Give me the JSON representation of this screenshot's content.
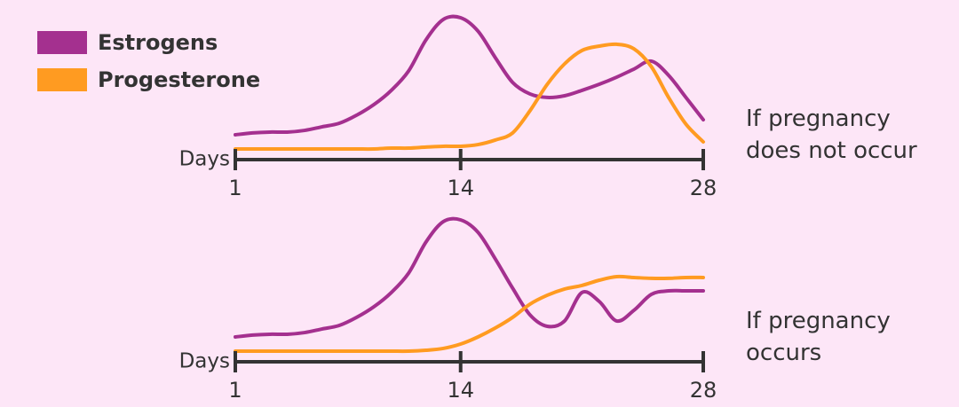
{
  "chart_data": [
    {
      "type": "line",
      "xlabel": "Days",
      "annotation": "If pregnancy does not occur",
      "legend": "top-left",
      "x": [
        1,
        2,
        3,
        4,
        5,
        6,
        7,
        8,
        9,
        10,
        11,
        12,
        13,
        14,
        15,
        16,
        17,
        18,
        19,
        20,
        21,
        22,
        23,
        24,
        25,
        26,
        27,
        28
      ],
      "xlim": [
        1,
        28
      ],
      "xticks": [
        1,
        14,
        28
      ],
      "ylim": [
        0,
        100
      ],
      "series": [
        {
          "name": "Estrogens",
          "color": "#a4308f",
          "values": [
            17.5,
            18.8,
            19.4,
            19.4,
            20.6,
            23.1,
            25.6,
            31.3,
            38.8,
            48.8,
            62.5,
            84.4,
            98.8,
            100,
            90.6,
            71.9,
            54.4,
            46.3,
            43.8,
            45,
            48.8,
            53.1,
            58.1,
            63.8,
            69.4,
            59.4,
            43.8,
            28.1
          ]
        },
        {
          "name": "Progesterone",
          "color": "#ff9b21",
          "values": [
            7.5,
            7.5,
            7.5,
            7.5,
            7.5,
            7.5,
            7.5,
            7.5,
            7.5,
            8.1,
            8.1,
            8.8,
            9.4,
            9.4,
            10.6,
            13.8,
            18.8,
            34.4,
            53.1,
            67.5,
            76.9,
            80,
            81.3,
            78.1,
            65.6,
            43.8,
            25,
            12.5
          ]
        }
      ]
    },
    {
      "type": "line",
      "xlabel": "Days",
      "annotation": "If pregnancy occurs",
      "x": [
        1,
        2,
        3,
        4,
        5,
        6,
        7,
        8,
        9,
        10,
        11,
        12,
        13,
        14,
        15,
        16,
        17,
        18,
        19,
        20,
        21,
        22,
        23,
        24,
        25,
        26,
        27,
        28
      ],
      "xlim": [
        1,
        28
      ],
      "xticks": [
        1,
        14,
        28
      ],
      "ylim": [
        0,
        100
      ],
      "series": [
        {
          "name": "Estrogens",
          "color": "#a4308f",
          "values": [
            17.5,
            18.8,
            19.4,
            19.4,
            20.6,
            23.1,
            25.6,
            31.3,
            38.8,
            48.8,
            62.5,
            84.4,
            98.8,
            100,
            91.3,
            72.5,
            51.9,
            33.1,
            25,
            28.8,
            48.8,
            42.5,
            28.8,
            36.3,
            47.5,
            50,
            50,
            50
          ]
        },
        {
          "name": "Progesterone",
          "color": "#ff9b21",
          "values": [
            7.5,
            7.5,
            7.5,
            7.5,
            7.5,
            7.5,
            7.5,
            7.5,
            7.5,
            7.5,
            7.5,
            8.1,
            9.4,
            12.5,
            17.5,
            23.8,
            31.3,
            40.6,
            46.9,
            51.3,
            53.8,
            57.5,
            60,
            59.4,
            58.8,
            58.8,
            59.4,
            59.4
          ]
        }
      ]
    }
  ]
}
